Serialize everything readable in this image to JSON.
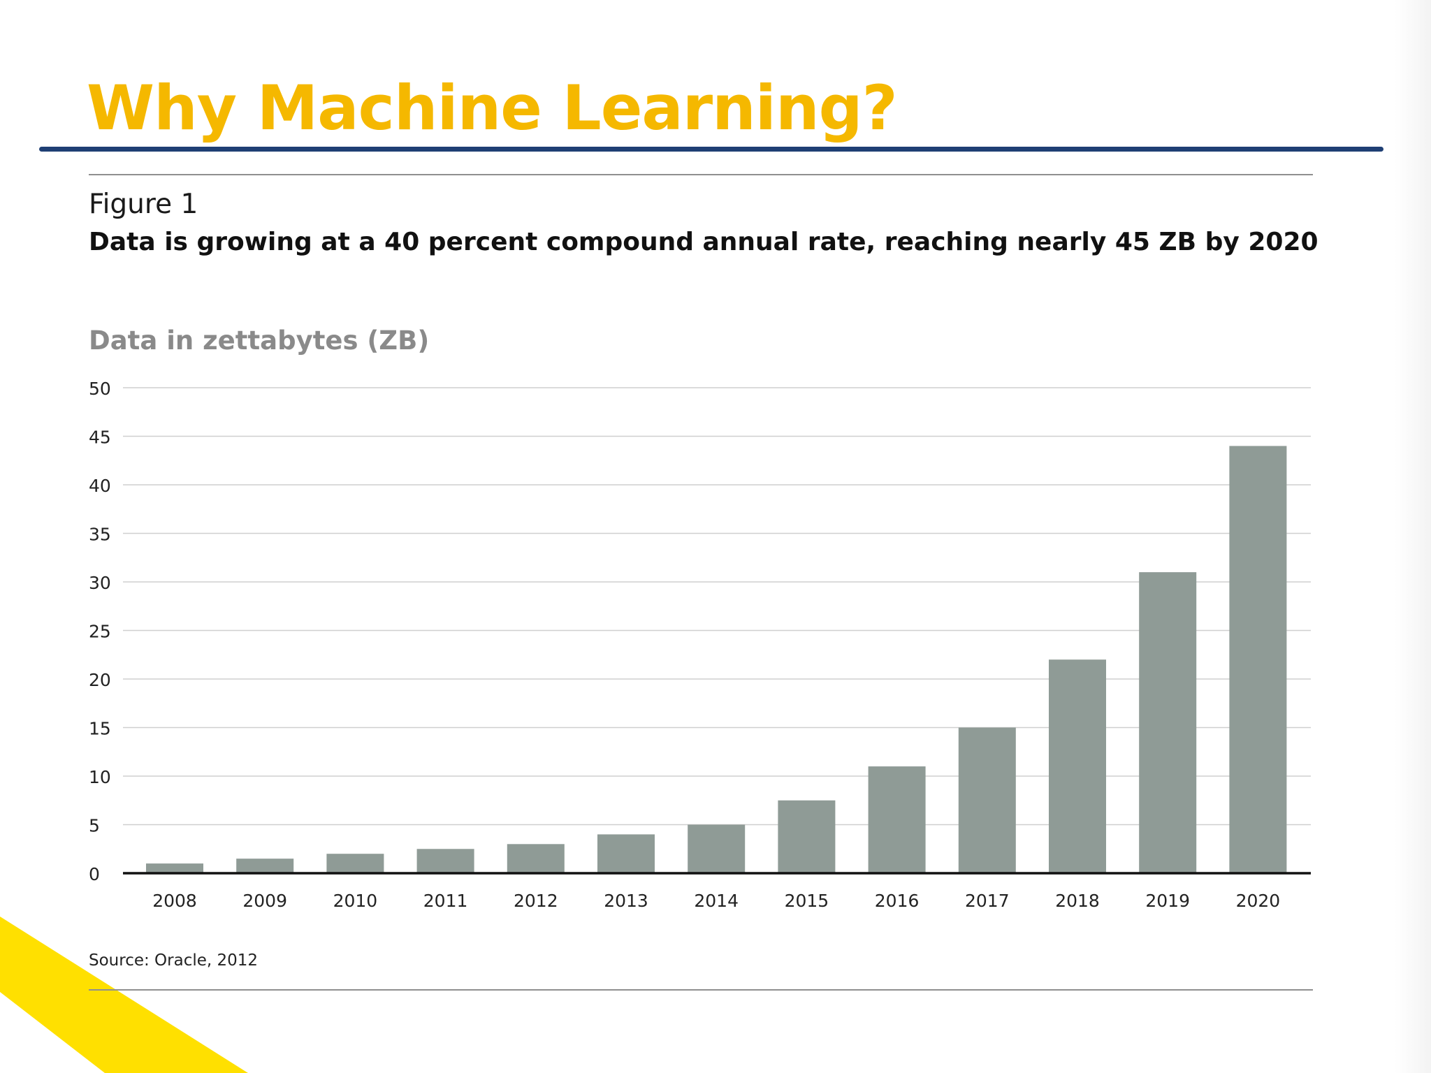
{
  "slide": {
    "title": "Why Machine Learning?",
    "colors": {
      "title": "#F5B800",
      "rule": "#1F3F74",
      "accent": "#FFE000"
    }
  },
  "figure": {
    "label": "Figure 1",
    "caption": "Data is growing at a 40 percent compound annual rate, reaching nearly 45 ZB by 2020",
    "source": "Source: Oracle, 2012"
  },
  "chart_data": {
    "type": "bar",
    "title": "Data is growing at a 40 percent compound annual rate, reaching nearly 45 ZB by 2020",
    "ylabel": "Data in zettabytes (ZB)",
    "xlabel": "",
    "categories": [
      "2008",
      "2009",
      "2010",
      "2011",
      "2012",
      "2013",
      "2014",
      "2015",
      "2016",
      "2017",
      "2018",
      "2019",
      "2020"
    ],
    "values": [
      1,
      1.5,
      2,
      2.5,
      3,
      4,
      5,
      7.5,
      11,
      15,
      22,
      31,
      44
    ],
    "ylim": [
      0,
      50
    ],
    "yticks": [
      0,
      5,
      10,
      15,
      20,
      25,
      30,
      35,
      40,
      45,
      50
    ],
    "grid": true,
    "bar_color": "#8F9B96"
  }
}
